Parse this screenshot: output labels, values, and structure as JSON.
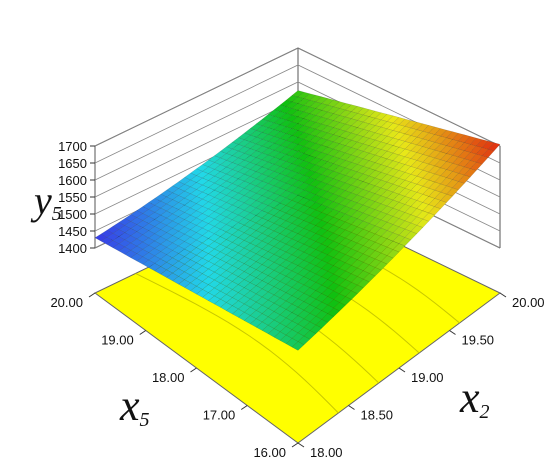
{
  "chart_data": {
    "type": "surface3d",
    "title": "",
    "x_axis": {
      "name": "x",
      "subscript": "2",
      "ticks": [
        "18.00",
        "18.50",
        "19.00",
        "19.50",
        "20.00"
      ],
      "range": [
        18,
        20
      ]
    },
    "y_axis": {
      "name": "x",
      "subscript": "5",
      "ticks": [
        "16.00",
        "17.00",
        "18.00",
        "19.00",
        "20.00"
      ],
      "range": [
        16,
        20
      ]
    },
    "z_axis": {
      "name": "y",
      "subscript": "5",
      "ticks": [
        "1400",
        "1450",
        "1500",
        "1550",
        "1600",
        "1650",
        "1700"
      ],
      "range": [
        1400,
        1700
      ]
    },
    "surface_corners": [
      {
        "x2": 18.0,
        "x5": 20.0,
        "y5": 1430
      },
      {
        "x2": 20.0,
        "x5": 20.0,
        "y5": 1575
      },
      {
        "x2": 18.0,
        "x5": 16.0,
        "y5": 1540
      },
      {
        "x2": 20.0,
        "x5": 16.0,
        "y5": 1705
      }
    ],
    "colormap": [
      "#3c1ee6",
      "#22d8e8",
      "#10c010",
      "#e8e818",
      "#e02810"
    ],
    "floor_color": "#ffff00",
    "grid": true
  }
}
